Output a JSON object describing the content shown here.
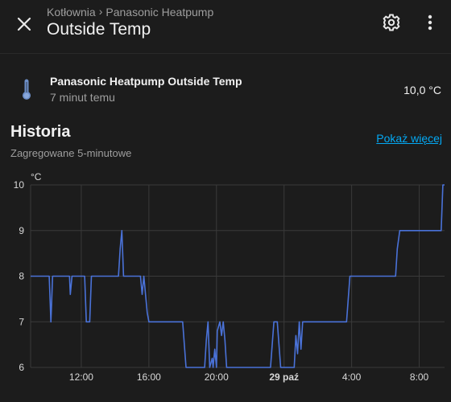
{
  "header": {
    "breadcrumb": [
      "Kotłownia",
      "Panasonic Heatpump"
    ],
    "title": "Outside Temp"
  },
  "entity": {
    "name": "Panasonic Heatpump Outside Temp",
    "last_changed": "7 minut temu",
    "value": "10,0 °C"
  },
  "history": {
    "title": "Historia",
    "subtitle": "Zagregowane 5-minutowe",
    "show_more": "Pokaż więcej"
  },
  "colors": {
    "line": "#4a72d8",
    "accent": "#03a9f4",
    "background": "#1c1c1c",
    "grid": "#3a3a3a"
  },
  "icons": {
    "close": "close-icon",
    "settings": "gear-icon",
    "more": "more-vertical-icon",
    "entity": "thermometer-icon"
  },
  "chart_data": {
    "type": "line",
    "ylabel": "°C",
    "ylim": [
      6,
      10
    ],
    "y_ticks": [
      10,
      9,
      8,
      7,
      6
    ],
    "x_range_hours": [
      9,
      33.5
    ],
    "x_ticks": [
      {
        "h": 12,
        "label": "12:00",
        "bold": false
      },
      {
        "h": 16,
        "label": "16:00",
        "bold": false
      },
      {
        "h": 20,
        "label": "20:00",
        "bold": false
      },
      {
        "h": 24,
        "label": "29 paź",
        "bold": true
      },
      {
        "h": 28,
        "label": "4:00",
        "bold": false
      },
      {
        "h": 32,
        "label": "8:00",
        "bold": false
      }
    ],
    "series": [
      {
        "values": [
          [
            9.0,
            8
          ],
          [
            10.1,
            8
          ],
          [
            10.2,
            7
          ],
          [
            10.3,
            8
          ],
          [
            11.3,
            8
          ],
          [
            11.35,
            7.6
          ],
          [
            11.45,
            8
          ],
          [
            12.2,
            8
          ],
          [
            12.3,
            7
          ],
          [
            12.5,
            7
          ],
          [
            12.6,
            8
          ],
          [
            14.2,
            8
          ],
          [
            14.3,
            8.6
          ],
          [
            14.4,
            9
          ],
          [
            14.5,
            8
          ],
          [
            15.5,
            8
          ],
          [
            15.6,
            7.6
          ],
          [
            15.7,
            8
          ],
          [
            15.8,
            7.6
          ],
          [
            15.9,
            7.2
          ],
          [
            16.0,
            7
          ],
          [
            18.0,
            7
          ],
          [
            18.2,
            6
          ],
          [
            19.3,
            6
          ],
          [
            19.4,
            6.6
          ],
          [
            19.5,
            7
          ],
          [
            19.6,
            6
          ],
          [
            19.75,
            6.2
          ],
          [
            19.8,
            6
          ],
          [
            19.9,
            6.4
          ],
          [
            20.0,
            6
          ],
          [
            20.05,
            6.8
          ],
          [
            20.2,
            7
          ],
          [
            20.3,
            6.7
          ],
          [
            20.4,
            7
          ],
          [
            20.5,
            6.6
          ],
          [
            20.6,
            6
          ],
          [
            23.2,
            6
          ],
          [
            23.4,
            7
          ],
          [
            23.6,
            7
          ],
          [
            23.8,
            6
          ],
          [
            24.6,
            6
          ],
          [
            24.7,
            6.7
          ],
          [
            24.8,
            6.3
          ],
          [
            24.9,
            7
          ],
          [
            25.0,
            6.4
          ],
          [
            25.1,
            7
          ],
          [
            27.7,
            7
          ],
          [
            27.9,
            8
          ],
          [
            30.6,
            8
          ],
          [
            30.7,
            8.6
          ],
          [
            30.85,
            9
          ],
          [
            33.3,
            9
          ],
          [
            33.4,
            10
          ],
          [
            33.5,
            10
          ]
        ]
      }
    ]
  }
}
